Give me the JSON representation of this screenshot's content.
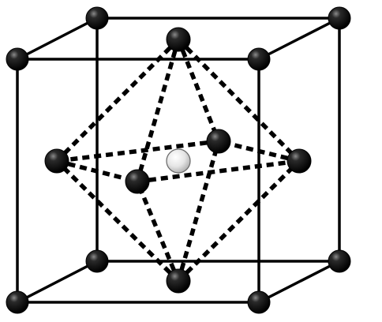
{
  "diagram": {
    "colors": {
      "background": "#ffffff",
      "cube_edges": "#000000",
      "octahedron_edges": "#000000",
      "black_atom": "#000000",
      "white_atom": "#ffffff"
    },
    "elements": {
      "cube_edge_count": 12,
      "octahedron_edge_count": 12,
      "corner_atoms_count": 8,
      "face_center_atoms_count": 6,
      "body_center_atoms_count": 1
    }
  }
}
